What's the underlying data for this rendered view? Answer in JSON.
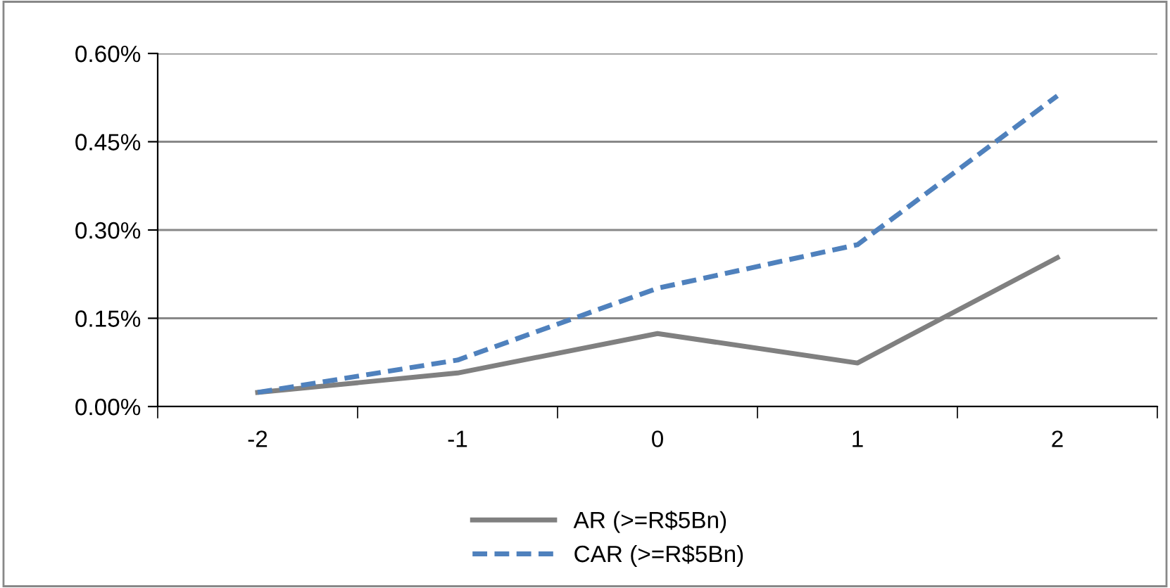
{
  "chart_data": {
    "type": "line",
    "categories": [
      "-2",
      "-1",
      "0",
      "1",
      "2"
    ],
    "series": [
      {
        "name": "AR (>=R$5Bn)",
        "color": "#808080",
        "line_style": "solid",
        "values": [
          0.024,
          0.057,
          0.124,
          0.074,
          0.253
        ]
      },
      {
        "name": "CAR (>=R$5Bn)",
        "color": "#4f81bd",
        "line_style": "dashed",
        "values": [
          0.024,
          0.079,
          0.201,
          0.275,
          0.528
        ]
      }
    ],
    "ylim": [
      0,
      0.6
    ],
    "yticks": [
      {
        "value": 0,
        "label": "0.00%"
      },
      {
        "value": 0.15,
        "label": "0.15%"
      },
      {
        "value": 0.3,
        "label": "0.30%"
      },
      {
        "value": 0.45,
        "label": "0.45%"
      },
      {
        "value": 0.6,
        "label": "0.60%"
      }
    ],
    "grid": "y",
    "legend": "bottom",
    "marker": "none"
  }
}
